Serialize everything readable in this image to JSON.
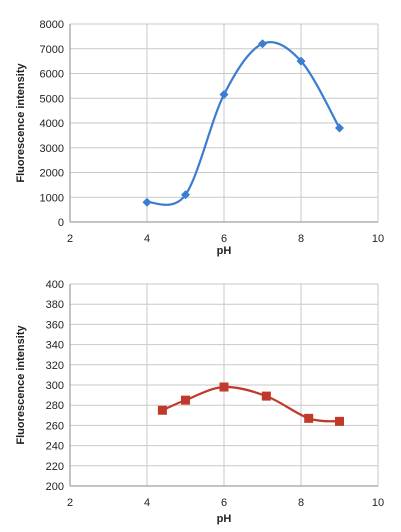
{
  "chart_data": [
    {
      "type": "line",
      "xlabel": "pH",
      "ylabel": "Fluorescence intensity",
      "xlim": [
        2,
        10
      ],
      "ylim": [
        0,
        8000
      ],
      "x_ticks": [
        2,
        4,
        6,
        8,
        10
      ],
      "y_ticks": [
        0,
        1000,
        2000,
        3000,
        4000,
        5000,
        6000,
        7000,
        8000
      ],
      "x_tick_labels": [
        "2",
        "4",
        "6",
        "8",
        "10"
      ],
      "y_tick_labels": [
        "0",
        "1000",
        "2000",
        "3000",
        "4000",
        "5000",
        "6000",
        "7000",
        "8000"
      ],
      "grid": true,
      "smooth": true,
      "series": [
        {
          "color": "#3a7dd1",
          "marker": "diamond",
          "x": [
            4,
            5,
            6,
            7,
            8,
            9
          ],
          "y": [
            800,
            1100,
            5150,
            7200,
            6500,
            3800
          ]
        }
      ]
    },
    {
      "type": "line",
      "xlabel": "pH",
      "ylabel": "Fluorescence intensity",
      "xlim": [
        2,
        10
      ],
      "ylim": [
        200,
        400
      ],
      "x_ticks": [
        2,
        4,
        6,
        8,
        10
      ],
      "y_ticks": [
        200,
        220,
        240,
        260,
        280,
        300,
        320,
        340,
        360,
        380,
        400
      ],
      "x_tick_labels": [
        "2",
        "4",
        "6",
        "8",
        "10"
      ],
      "y_tick_labels": [
        "200",
        "220",
        "240",
        "260",
        "280",
        "300",
        "320",
        "340",
        "360",
        "380",
        "400"
      ],
      "grid": true,
      "smooth": true,
      "series": [
        {
          "color": "#c0392b",
          "marker": "square",
          "x": [
            4.4,
            5,
            6,
            7.1,
            8.2,
            9
          ],
          "y": [
            275,
            285,
            298,
            289,
            267,
            264
          ]
        }
      ]
    }
  ]
}
